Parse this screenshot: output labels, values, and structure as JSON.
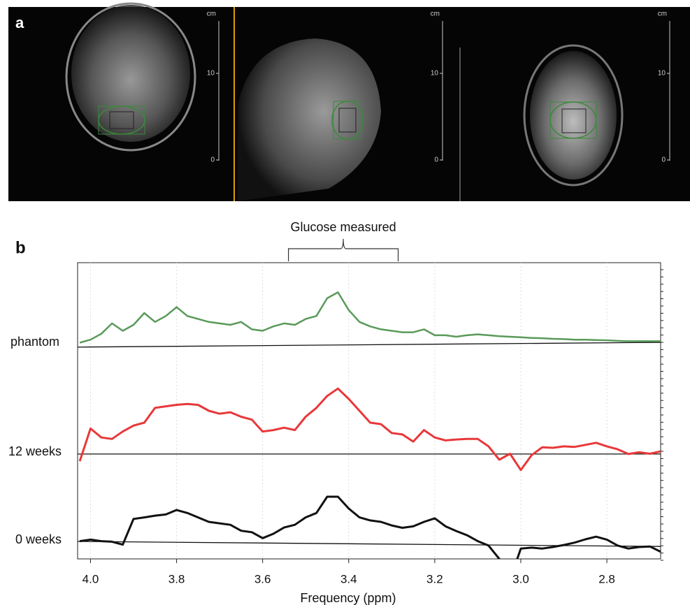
{
  "panel_a": {
    "label": "a",
    "scales": [
      {
        "unit": "cm",
        "ticks": [
          "10",
          "0"
        ]
      },
      {
        "unit": "cm",
        "ticks": [
          "10",
          "0"
        ]
      },
      {
        "unit": "cm",
        "ticks": [
          "10",
          "0"
        ]
      }
    ]
  },
  "chart_data": {
    "type": "line",
    "panel_label": "b",
    "annotation": "Glucose measured",
    "annotation_range": [
      3.54,
      3.285
    ],
    "xlabel": "Frequency (ppm)",
    "xlim": [
      4.03,
      2.675
    ],
    "ylim": [
      0,
      100
    ],
    "grid": true,
    "xticks": [
      {
        "value": 4,
        "label": "4.0"
      },
      3.8,
      3.6,
      3.4,
      3.2,
      {
        "value": 3,
        "label": "3.0"
      },
      2.8
    ],
    "x": [
      4.025,
      4.0,
      3.975,
      3.95,
      3.925,
      3.9,
      3.875,
      3.85,
      3.825,
      3.8,
      3.775,
      3.75,
      3.725,
      3.7,
      3.675,
      3.65,
      3.625,
      3.6,
      3.575,
      3.55,
      3.525,
      3.5,
      3.475,
      3.45,
      3.425,
      3.4,
      3.375,
      3.35,
      3.325,
      3.3,
      3.275,
      3.25,
      3.225,
      3.2,
      3.175,
      3.15,
      3.125,
      3.1,
      3.075,
      3.05,
      3.025,
      3.0,
      2.975,
      2.95,
      2.925,
      2.9,
      2.875,
      2.85,
      2.825,
      2.8,
      2.775,
      2.75,
      2.725,
      2.7,
      2.675
    ],
    "series": [
      {
        "name": "phantom",
        "color": "#5a9a5a",
        "baseline": [
          71.5,
          73.1
        ],
        "values": [
          73,
          74,
          76,
          79.5,
          77,
          79,
          83,
          80,
          82,
          85,
          82,
          81,
          80,
          79.5,
          79,
          80,
          77.5,
          77,
          78.5,
          79.5,
          79,
          81,
          82,
          88,
          90,
          84,
          80,
          78.5,
          77.5,
          77,
          76.5,
          76.5,
          77.5,
          75.5,
          75.5,
          75,
          75.5,
          75.8,
          75.5,
          75.2,
          75,
          74.8,
          74.6,
          74.5,
          74.3,
          74.2,
          74,
          74,
          73.9,
          73.8,
          73.6,
          73.5,
          73.5,
          73.5,
          73.5
        ]
      },
      {
        "name": "12 weeks",
        "color": "#e8383a",
        "baseline": [
          35.4,
          35.4
        ],
        "values": [
          33,
          44,
          41,
          40.5,
          43,
          45,
          46,
          51,
          51.5,
          52,
          52.3,
          52,
          50,
          49,
          49.5,
          48,
          47,
          43,
          43.5,
          44.3,
          43.5,
          48,
          51,
          55,
          57.5,
          54,
          50,
          46,
          45.5,
          42.5,
          42,
          39.6,
          43.5,
          41,
          40,
          40.3,
          40.5,
          40.5,
          38,
          33.5,
          35.5,
          30,
          35,
          37.7,
          37.5,
          38,
          37.8,
          38.5,
          39.2,
          38,
          37,
          35.4,
          36,
          35.5,
          36.3
        ]
      },
      {
        "name": "0 weeks",
        "color": "#111111",
        "baseline": [
          5.9,
          4.2
        ],
        "values": [
          6,
          6.5,
          6,
          5.8,
          4.8,
          13.5,
          14,
          14.6,
          15,
          16.5,
          15.5,
          14,
          12.5,
          12,
          11.5,
          9.5,
          9,
          7,
          8.5,
          10.6,
          11.5,
          14,
          15.5,
          21,
          21,
          17,
          14,
          13,
          12.5,
          11.3,
          10.5,
          11,
          12.5,
          13.7,
          11,
          9.4,
          8,
          6,
          4.5,
          0,
          -7,
          3.5,
          3.8,
          3.5,
          4,
          4.7,
          5.5,
          6.6,
          7.5,
          6.5,
          4.5,
          3.5,
          4,
          4.2,
          2.4
        ]
      }
    ]
  }
}
